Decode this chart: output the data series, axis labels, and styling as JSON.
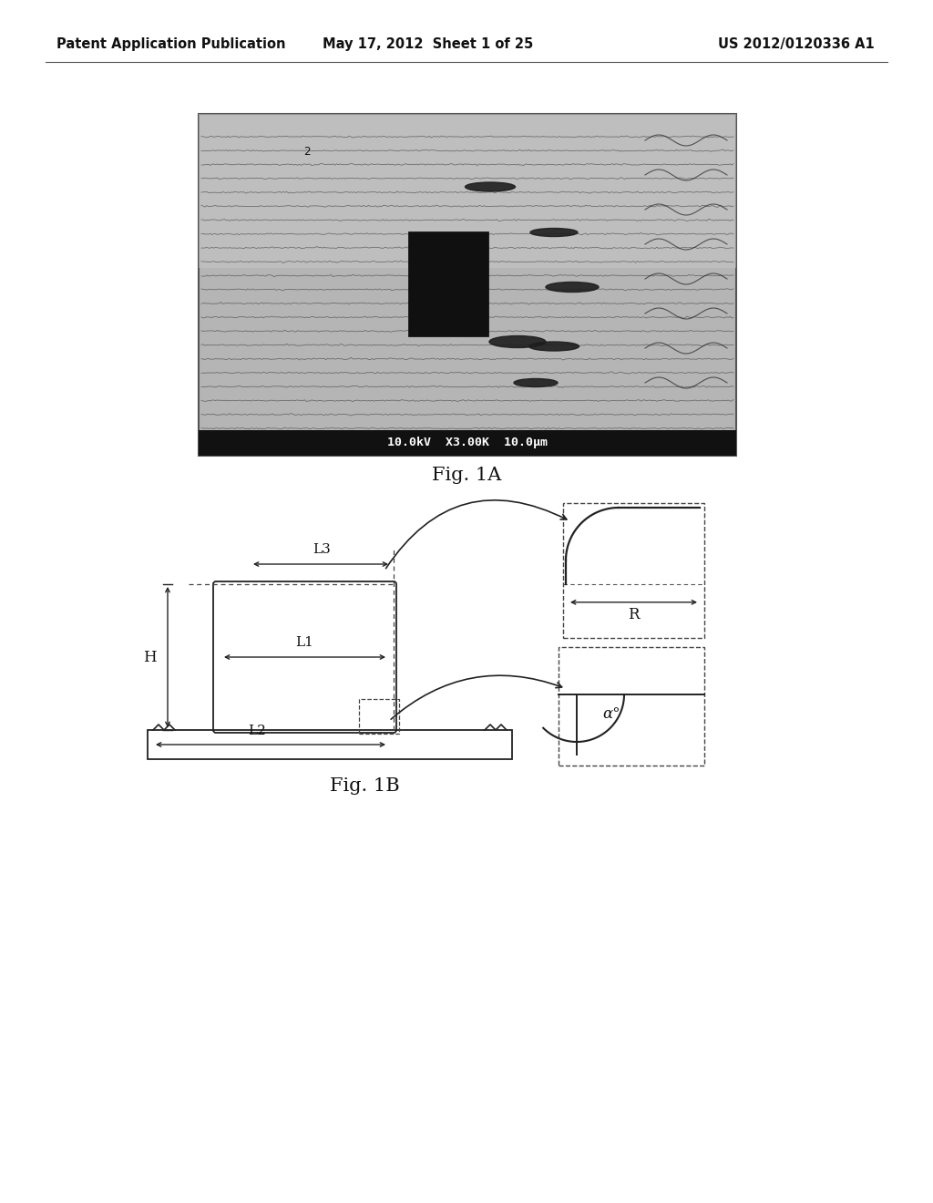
{
  "header_left": "Patent Application Publication",
  "header_mid": "May 17, 2012  Sheet 1 of 25",
  "header_right": "US 2012/0120336 A1",
  "fig1a_label": "Fig. 1A",
  "fig1b_label": "Fig. 1B",
  "sem_image_note": "10.0kV  X3.00K  10.0μm",
  "label_L1": "L1",
  "label_L2": "L2",
  "label_L3": "L3",
  "label_H": "H",
  "label_R": "R",
  "label_alpha": "α°",
  "bg_color": "#ffffff",
  "line_color": "#1a1a1a",
  "sem_bg_color": "#b8b8b8",
  "sem_dark": "#222222",
  "sem_bar_color": "#111111"
}
